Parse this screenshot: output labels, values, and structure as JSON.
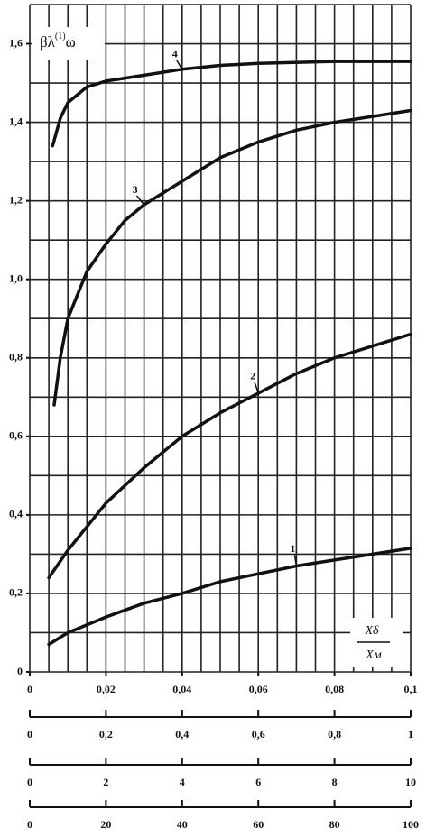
{
  "chart_data": {
    "type": "line",
    "y_label": {
      "main": "βλ",
      "sup": "(1)",
      "tail": "ω"
    },
    "x_label": {
      "numerator": "Xδ",
      "denominator": "Xм"
    },
    "xlim": [
      0,
      0.1
    ],
    "ylim": [
      0,
      1.7
    ],
    "xticks": [
      0,
      {
        "value": 0.02,
        "label": "0,02"
      },
      {
        "value": 0.04,
        "label": "0,04"
      },
      {
        "value": 0.06,
        "label": "0,06"
      },
      {
        "value": 0.08,
        "label": "0,08"
      },
      {
        "value": 0.1,
        "label": "0,1"
      }
    ],
    "yticks": [
      0,
      {
        "value": 0.2,
        "label": "0,2"
      },
      {
        "value": 0.4,
        "label": "0,4"
      },
      {
        "value": 0.6,
        "label": "0,6"
      },
      {
        "value": 0.8,
        "label": "0,8"
      },
      {
        "value": 1.0,
        "label": "1,0"
      },
      {
        "value": 1.2,
        "label": "1,2"
      },
      {
        "value": 1.4,
        "label": "1,4"
      },
      {
        "value": 1.6,
        "label": "1,6"
      }
    ],
    "xgrid": [
      0,
      0.005,
      0.01,
      0.015,
      0.02,
      0.025,
      0.03,
      0.035,
      0.04,
      0.045,
      0.05,
      0.055,
      0.06,
      0.065,
      0.07,
      0.075,
      0.08,
      0.085,
      0.09,
      0.095,
      0.1
    ],
    "ygrid": [
      0,
      0.1,
      0.2,
      0.3,
      0.4,
      0.5,
      0.6,
      0.7,
      0.8,
      0.9,
      1.0,
      1.1,
      1.2,
      1.3,
      1.4,
      1.5,
      1.6,
      1.7
    ],
    "secondary_x_axes": [
      {
        "xlim": [
          0,
          1
        ],
        "xticks": [
          0,
          {
            "value": 0.2,
            "label": "0,2"
          },
          {
            "value": 0.4,
            "label": "0,4"
          },
          {
            "value": 0.6,
            "label": "0,6"
          },
          {
            "value": 0.8,
            "label": "0,8"
          },
          1
        ]
      },
      {
        "xlim": [
          0,
          10
        ],
        "xticks": [
          0,
          2,
          4,
          6,
          8,
          10
        ]
      },
      {
        "xlim": [
          0,
          100
        ],
        "xticks": [
          0,
          20,
          40,
          60,
          80,
          100
        ]
      }
    ],
    "series": [
      {
        "name": "1",
        "color": "#111111",
        "x": [
          0.005,
          0.01,
          0.02,
          0.03,
          0.04,
          0.05,
          0.06,
          0.07,
          0.08,
          0.09,
          0.1
        ],
        "values": [
          0.07,
          0.1,
          0.14,
          0.175,
          0.2,
          0.23,
          0.25,
          0.27,
          0.285,
          0.3,
          0.315
        ]
      },
      {
        "name": "2",
        "color": "#111111",
        "x": [
          0.005,
          0.01,
          0.02,
          0.03,
          0.04,
          0.05,
          0.06,
          0.07,
          0.08,
          0.09,
          0.1
        ],
        "values": [
          0.24,
          0.31,
          0.43,
          0.52,
          0.6,
          0.66,
          0.71,
          0.76,
          0.8,
          0.83,
          0.86
        ]
      },
      {
        "name": "3",
        "color": "#111111",
        "x": [
          0.0064,
          0.008,
          0.01,
          0.015,
          0.02,
          0.025,
          0.03,
          0.04,
          0.05,
          0.06,
          0.07,
          0.08,
          0.09,
          0.1
        ],
        "values": [
          0.68,
          0.8,
          0.9,
          1.02,
          1.09,
          1.15,
          1.19,
          1.25,
          1.31,
          1.35,
          1.38,
          1.4,
          1.415,
          1.43
        ]
      },
      {
        "name": "4",
        "color": "#111111",
        "x": [
          0.006,
          0.008,
          0.01,
          0.015,
          0.02,
          0.03,
          0.04,
          0.05,
          0.06,
          0.08,
          0.1
        ],
        "values": [
          1.34,
          1.41,
          1.45,
          1.49,
          1.505,
          1.52,
          1.535,
          1.545,
          1.55,
          1.555,
          1.555
        ]
      }
    ]
  }
}
